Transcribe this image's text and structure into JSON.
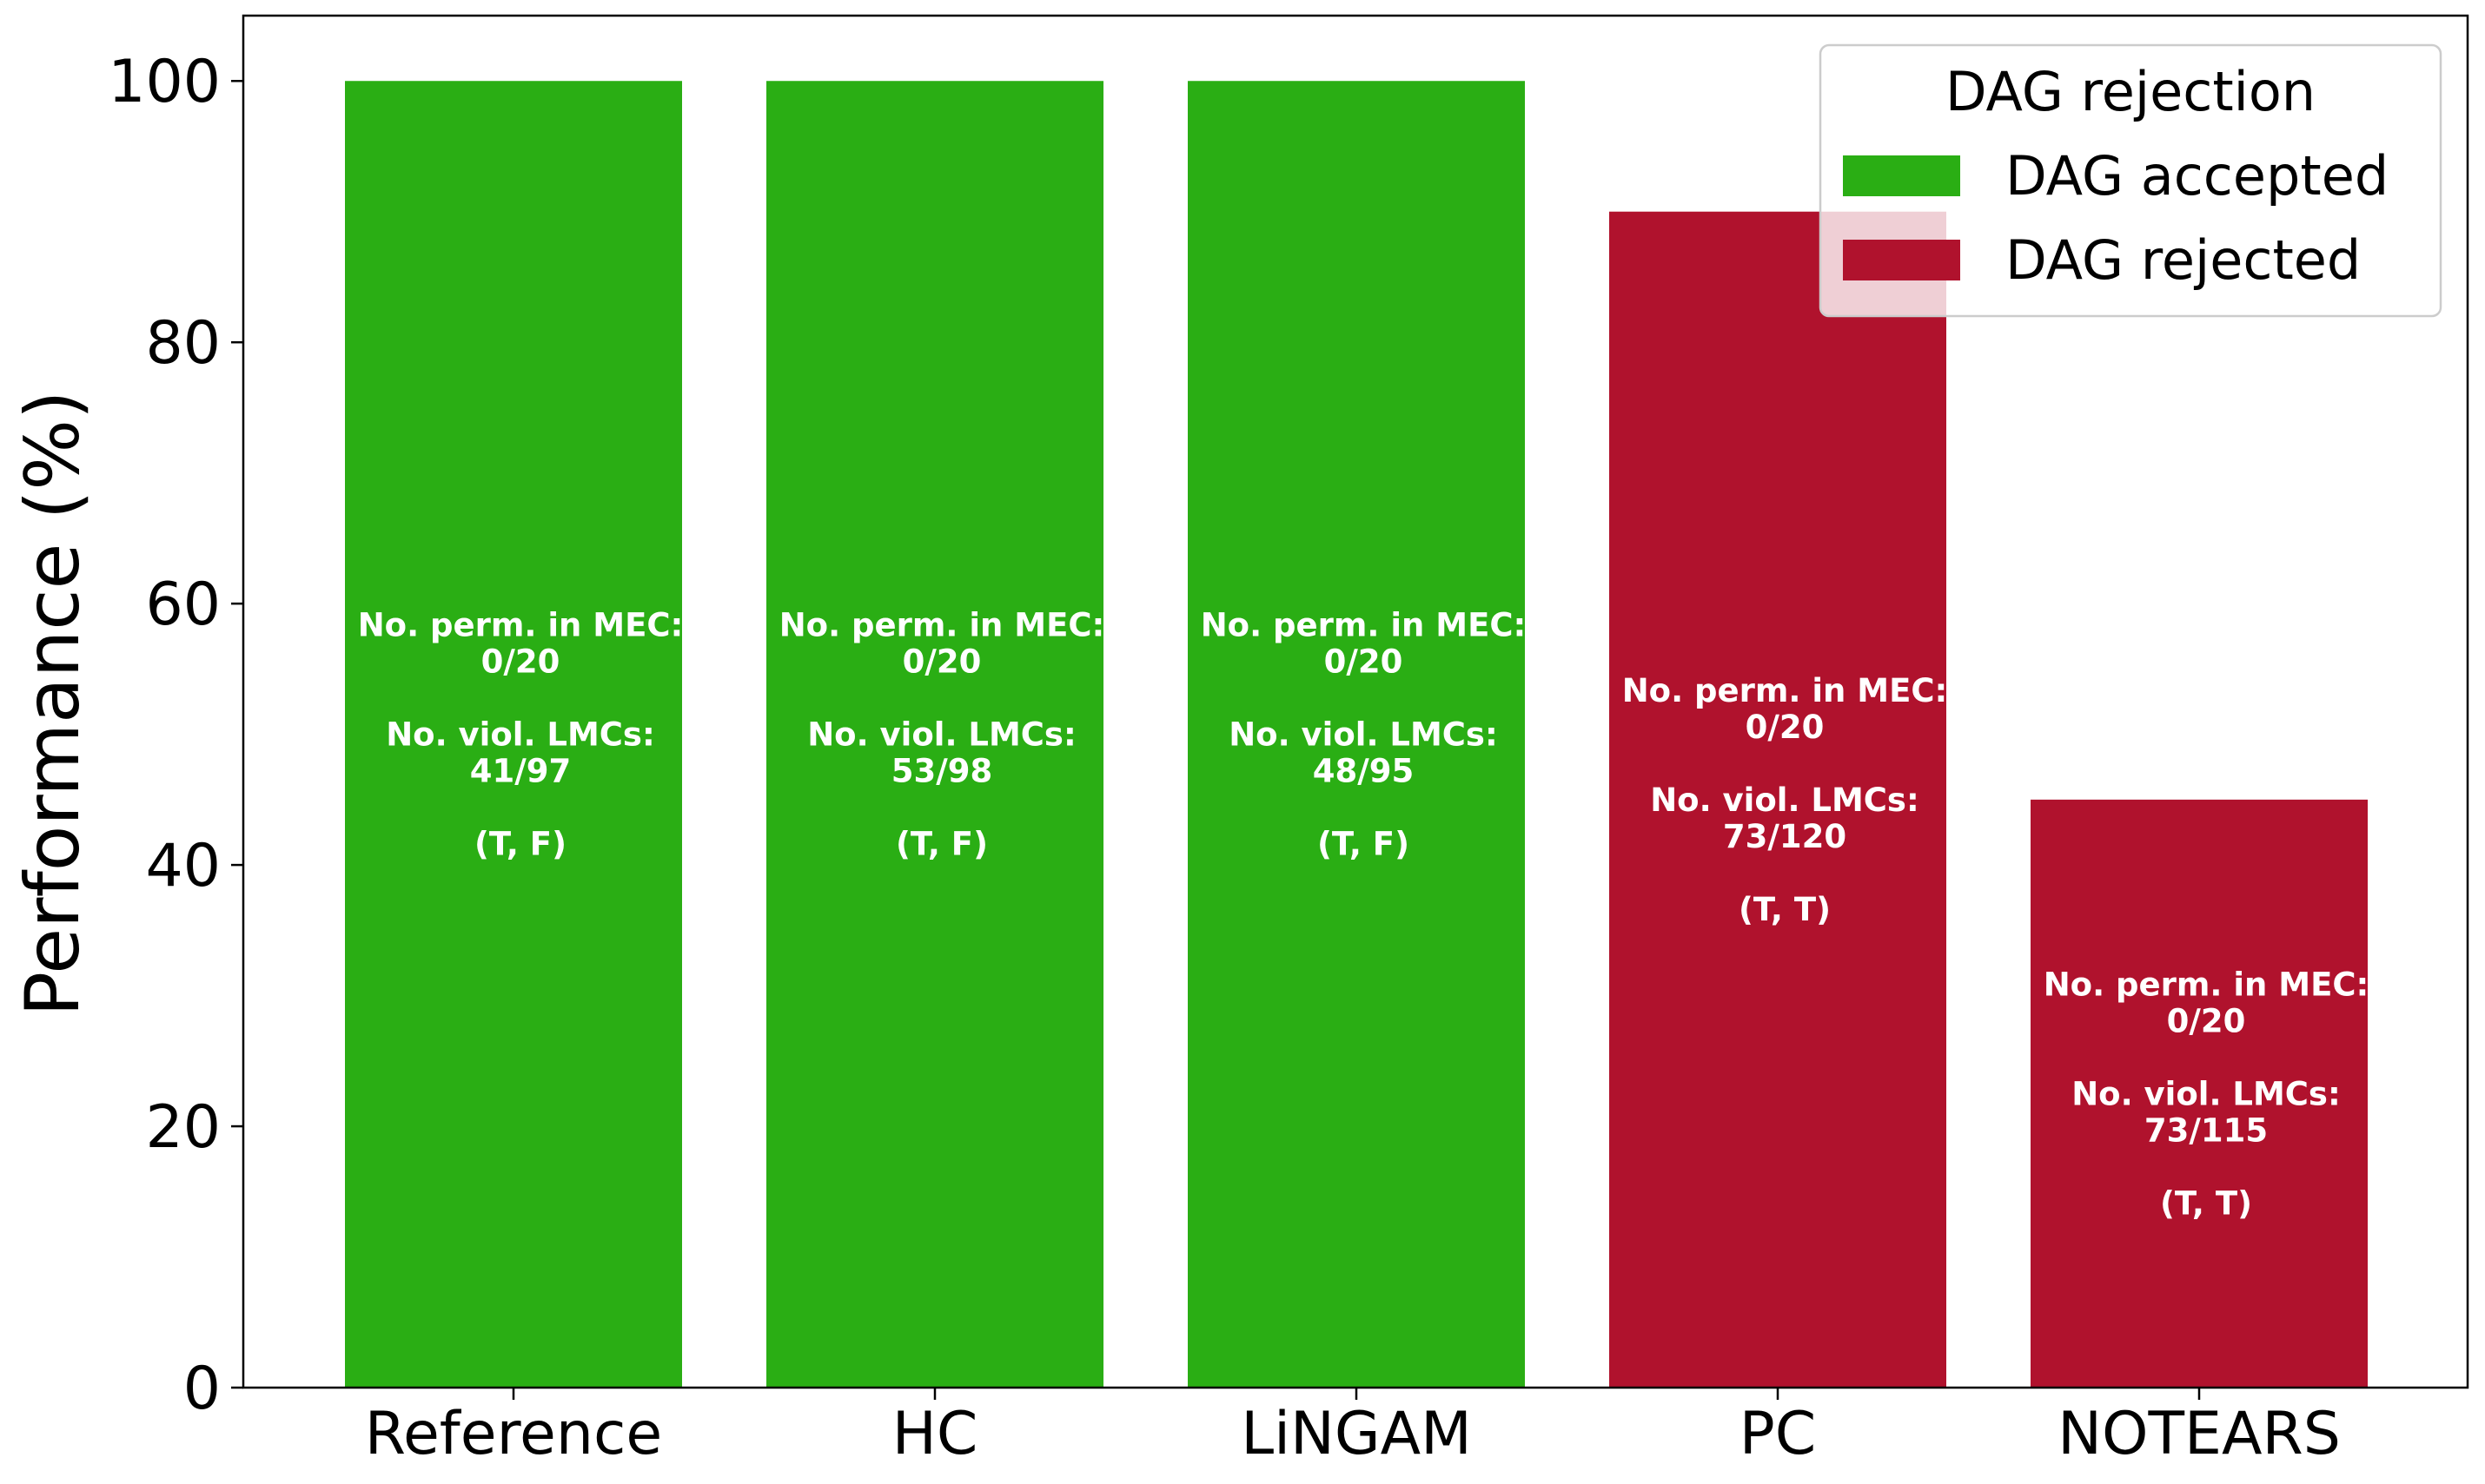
{
  "chart_data": {
    "type": "bar",
    "categories": [
      "Reference",
      "HC",
      "LiNGAM",
      "PC",
      "NOTEARS"
    ],
    "values": [
      100,
      100,
      100,
      90,
      45
    ],
    "status": [
      "accepted",
      "accepted",
      "accepted",
      "rejected",
      "rejected"
    ],
    "bar_annotations": [
      [
        "No. perm. in MEC:",
        "0/20",
        "",
        "No. viol. LMCs:",
        "41/97",
        "",
        "(T, F)"
      ],
      [
        "No. perm. in MEC:",
        "0/20",
        "",
        "No. viol. LMCs:",
        "53/98",
        "",
        "(T, F)"
      ],
      [
        "No. perm. in MEC:",
        "0/20",
        "",
        "No. viol. LMCs:",
        "48/95",
        "",
        "(T, F)"
      ],
      [
        "No. perm. in MEC:",
        "0/20",
        "",
        "No. viol. LMCs:",
        "73/120",
        "",
        "(T, T)"
      ],
      [
        "No. perm. in MEC:",
        "0/20",
        "",
        "No. viol. LMCs:",
        "73/115",
        "",
        "(T, T)"
      ]
    ],
    "title": "",
    "xlabel": "",
    "ylabel": "Performance (%)",
    "ylim": [
      0,
      105
    ],
    "yticks": [
      0,
      20,
      40,
      60,
      80,
      100
    ],
    "grid": false,
    "legend": {
      "title": "DAG rejection",
      "placement": "top-right",
      "entries": [
        {
          "key": "accepted",
          "label": "DAG accepted",
          "color": "#2aae14"
        },
        {
          "key": "rejected",
          "label": "DAG rejected",
          "color": "#b0122d"
        }
      ]
    },
    "colors": {
      "accepted": "#2aae14",
      "rejected": "#b0122d"
    }
  }
}
